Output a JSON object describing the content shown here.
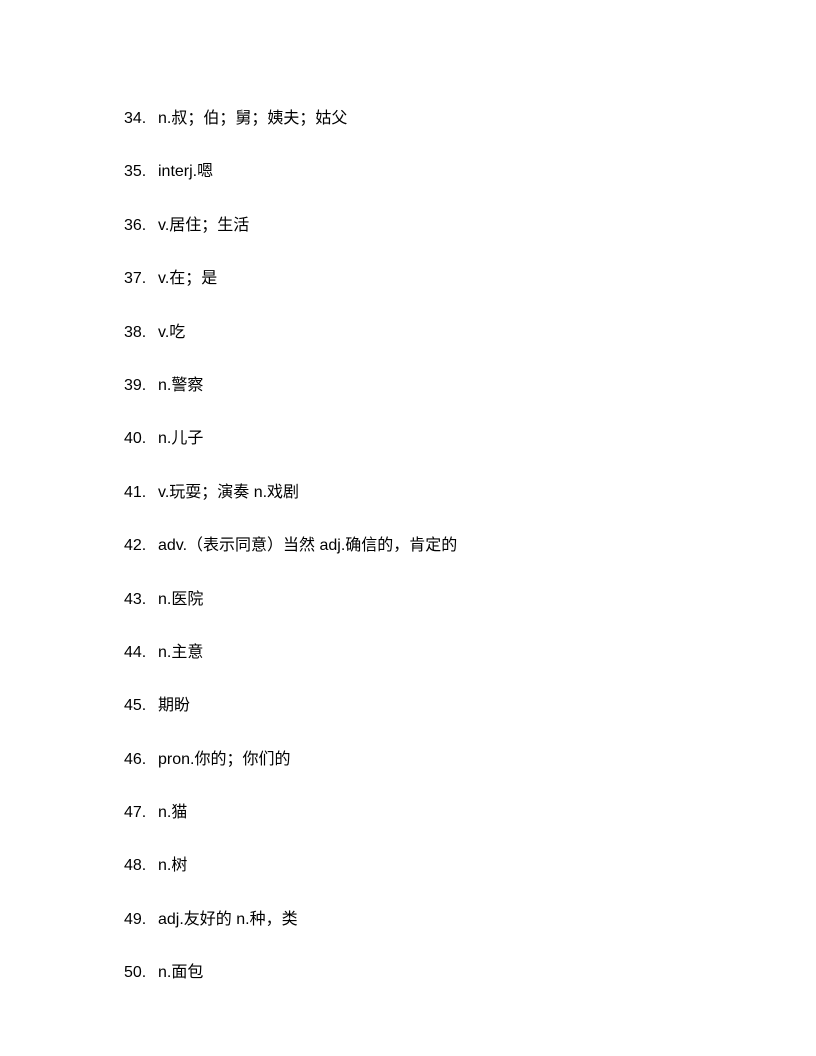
{
  "vocabulary_list": {
    "type": "document",
    "background_color": "#ffffff",
    "text_color": "#000000",
    "font_size": 16,
    "font_family": "Microsoft YaHei",
    "line_spacing": 31,
    "items": [
      {
        "number": "34.",
        "text": "n.叔；伯；舅；姨夫；姑父"
      },
      {
        "number": "35.",
        "text": "interj.嗯"
      },
      {
        "number": "36.",
        "text": "v.居住；生活"
      },
      {
        "number": "37.",
        "text": "v.在；是"
      },
      {
        "number": "38.",
        "text": "v.吃"
      },
      {
        "number": "39.",
        "text": "n.警察"
      },
      {
        "number": "40.",
        "text": "n.儿子"
      },
      {
        "number": "41.",
        "text": "v.玩耍；演奏 n.戏剧"
      },
      {
        "number": "42.",
        "text": "adv.（表示同意）当然 adj.确信的，肯定的"
      },
      {
        "number": "43.",
        "text": "n.医院"
      },
      {
        "number": "44.",
        "text": "n.主意"
      },
      {
        "number": "45.",
        "text": "期盼"
      },
      {
        "number": "46.",
        "text": "pron.你的；你们的"
      },
      {
        "number": "47.",
        "text": "n.猫"
      },
      {
        "number": "48.",
        "text": "n.树"
      },
      {
        "number": "49.",
        "text": "adj.友好的 n.种，类"
      },
      {
        "number": "50.",
        "text": "n.面包"
      }
    ]
  }
}
